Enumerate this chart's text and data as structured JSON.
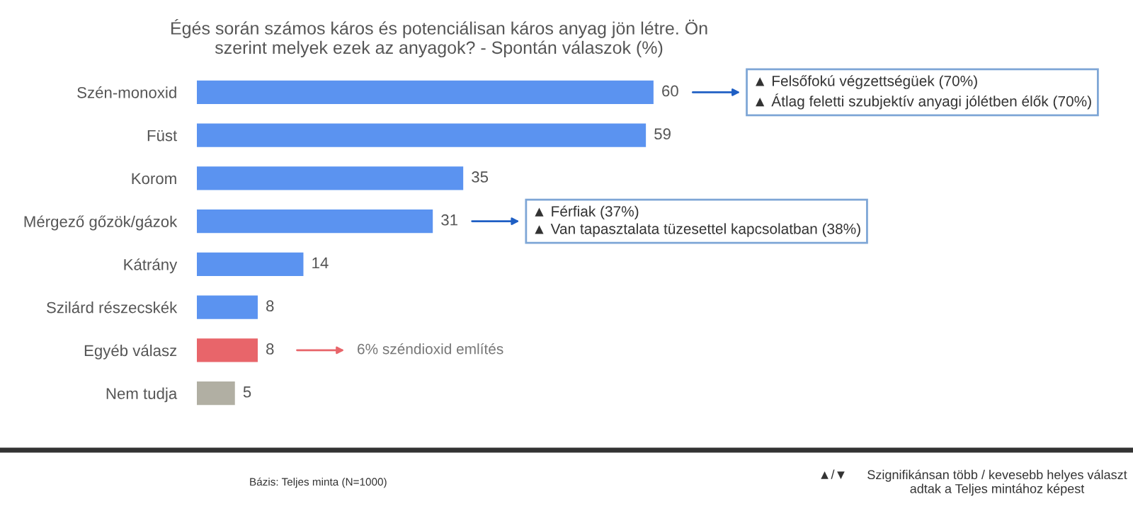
{
  "chart_data": {
    "type": "bar",
    "orientation": "horizontal",
    "title": "Égés során számos káros és potenciálisan káros anyag jön létre. Ön\nszerint melyek ezek az anyagok? - Spontán válaszok (%)",
    "categories": [
      "Szén-monoxid",
      "Füst",
      "Korom",
      "Mérgező gőzök/gázok",
      "Kátrány",
      "Szilárd részecskék",
      "Egyéb válasz",
      "Nem tudja"
    ],
    "values": [
      60,
      59,
      35,
      31,
      14,
      8,
      8,
      5
    ],
    "colors": [
      "#5b93f0",
      "#5b93f0",
      "#5b93f0",
      "#5b93f0",
      "#5b93f0",
      "#5b93f0",
      "#e8656a",
      "#b1afa3"
    ],
    "data_labels": true,
    "grid": false,
    "legend": false,
    "annotations": [
      "▲ Felsőfokú végzettségüek (70%)\n▲ Átlag feletti szubjektív anyagi jólétben élők (70%)",
      "▲ Férfiak (37%)\n▲ Van tapasztalata tüzesettel kapcsolatban (38%)",
      "6% széndioxid említés",
      "Bázis: Teljes minta (N=1000)",
      "▲/▼",
      "Szignifikánsan több / kevesebb helyes választ\nadtak a Teljes mintához képest"
    ]
  }
}
